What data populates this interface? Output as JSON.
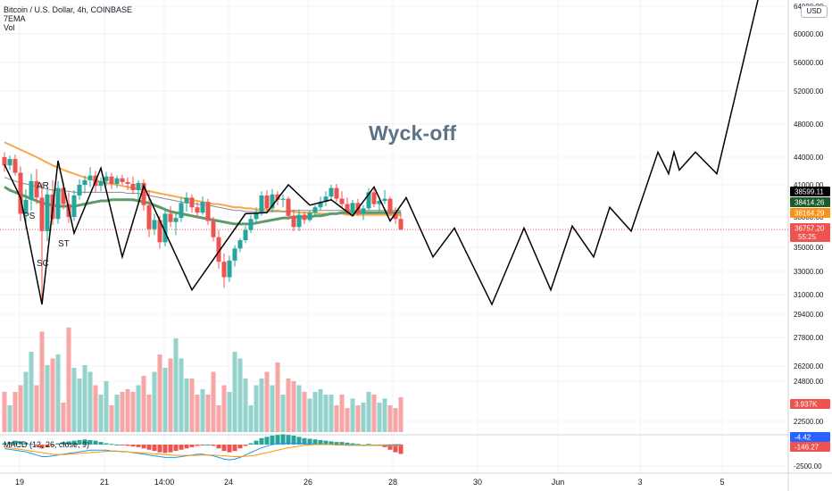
{
  "legend": {
    "symbol": "Bitcoin / U.S. Dollar, 4h, COINBASE",
    "ema": "7EMA",
    "vol": "Vol"
  },
  "currency_badge": "USD",
  "macd_title": "MACD (12, 26, close, 9)",
  "annotation_title": "Wyck-off",
  "wyckoff_labels": [
    "AR",
    "PS",
    "ST",
    "SC"
  ],
  "colors": {
    "up": "#26a69a",
    "down": "#ef5350",
    "vol_up": "#94d3cc",
    "vol_down": "#f5a6a5",
    "ema_fast": "#5e9b68",
    "ema_slow": "#f7a947",
    "ema_mid": "#8a8a8a",
    "path": "#000000",
    "macd": "#2196f3",
    "signal": "#ff9800",
    "badge_black": "#000000",
    "badge_green": "#1e5b2a",
    "badge_orange": "#f7931a",
    "badge_red": "#ef5350",
    "badge_blue": "#2962ff"
  },
  "chart_data": {
    "type": "candlestick",
    "interval": "4h",
    "x_tick_labels": [
      "19",
      "21",
      "14:00",
      "24",
      "26",
      "28",
      "30",
      "Jun",
      "3",
      "5"
    ],
    "y_axis_price": {
      "tick_labels": [
        "64000.00",
        "60000.00",
        "56000.00",
        "52000.00",
        "48000.00",
        "44000.00",
        "41000.00",
        "38000.00",
        "35000.00",
        "33000.00",
        "31000.00",
        "29400.00"
      ],
      "badges": [
        {
          "value": "38599.11",
          "color": "badge_black"
        },
        {
          "value": "38414.26",
          "color": "badge_green"
        },
        {
          "value": "38164.29",
          "color": "badge_orange"
        },
        {
          "value": "36757.20",
          "color": "badge_red",
          "sub": "55:25"
        }
      ]
    },
    "y_axis_volume": {
      "tick_labels": [
        "27800.00",
        "26200.00",
        "24800.00",
        "22500.00"
      ],
      "badge": "3.937K"
    },
    "y_axis_macd": {
      "tick_labels": [
        "-2500.00"
      ],
      "badges": [
        {
          "value": "-4.42",
          "color": "badge_blue"
        },
        {
          "value": "-146.27",
          "color": "badge_red"
        }
      ]
    },
    "candles": [
      {
        "o": 44000,
        "h": 44600,
        "l": 42400,
        "c": 43100
      },
      {
        "o": 43100,
        "h": 44200,
        "l": 42600,
        "c": 43800
      },
      {
        "o": 43800,
        "h": 44300,
        "l": 42000,
        "c": 42300
      },
      {
        "o": 42300,
        "h": 43000,
        "l": 37600,
        "c": 38300
      },
      {
        "o": 38300,
        "h": 40600,
        "l": 36800,
        "c": 39600
      },
      {
        "o": 39600,
        "h": 42200,
        "l": 38600,
        "c": 41400
      },
      {
        "o": 41400,
        "h": 42700,
        "l": 39200,
        "c": 39800
      },
      {
        "o": 39800,
        "h": 41200,
        "l": 30200,
        "c": 36600
      },
      {
        "o": 36600,
        "h": 40800,
        "l": 35600,
        "c": 40100
      },
      {
        "o": 40100,
        "h": 41500,
        "l": 37200,
        "c": 37800
      },
      {
        "o": 37800,
        "h": 41400,
        "l": 37300,
        "c": 40700
      },
      {
        "o": 40700,
        "h": 41300,
        "l": 38700,
        "c": 39200
      },
      {
        "o": 39200,
        "h": 40300,
        "l": 37400,
        "c": 38000
      },
      {
        "o": 38000,
        "h": 40500,
        "l": 37600,
        "c": 40000
      },
      {
        "o": 40000,
        "h": 41600,
        "l": 39600,
        "c": 41000
      },
      {
        "o": 41000,
        "h": 42000,
        "l": 40200,
        "c": 41500
      },
      {
        "o": 41500,
        "h": 42900,
        "l": 40800,
        "c": 42000
      },
      {
        "o": 42000,
        "h": 42500,
        "l": 40300,
        "c": 40900
      },
      {
        "o": 40900,
        "h": 41800,
        "l": 40400,
        "c": 41400
      },
      {
        "o": 41400,
        "h": 42400,
        "l": 40900,
        "c": 41900
      },
      {
        "o": 41900,
        "h": 42300,
        "l": 40600,
        "c": 41100
      },
      {
        "o": 41100,
        "h": 42000,
        "l": 40700,
        "c": 41700
      },
      {
        "o": 41700,
        "h": 42100,
        "l": 41000,
        "c": 41300
      },
      {
        "o": 41300,
        "h": 41800,
        "l": 40500,
        "c": 41100
      },
      {
        "o": 41100,
        "h": 41900,
        "l": 40100,
        "c": 40500
      },
      {
        "o": 40500,
        "h": 41500,
        "l": 39600,
        "c": 41200
      },
      {
        "o": 41200,
        "h": 41600,
        "l": 38600,
        "c": 39100
      },
      {
        "o": 39100,
        "h": 40500,
        "l": 36000,
        "c": 36800
      },
      {
        "o": 36800,
        "h": 38300,
        "l": 36200,
        "c": 37700
      },
      {
        "o": 37700,
        "h": 38100,
        "l": 34900,
        "c": 35500
      },
      {
        "o": 35500,
        "h": 38800,
        "l": 35100,
        "c": 38300
      },
      {
        "o": 38300,
        "h": 39000,
        "l": 37000,
        "c": 37500
      },
      {
        "o": 37500,
        "h": 38400,
        "l": 36200,
        "c": 37900
      },
      {
        "o": 37900,
        "h": 39800,
        "l": 37500,
        "c": 39300
      },
      {
        "o": 39300,
        "h": 40300,
        "l": 38500,
        "c": 39800
      },
      {
        "o": 39800,
        "h": 40100,
        "l": 38400,
        "c": 38900
      },
      {
        "o": 38900,
        "h": 39400,
        "l": 37900,
        "c": 38400
      },
      {
        "o": 38400,
        "h": 39900,
        "l": 38200,
        "c": 39400
      },
      {
        "o": 39400,
        "h": 39700,
        "l": 37200,
        "c": 37600
      },
      {
        "o": 37600,
        "h": 38000,
        "l": 35600,
        "c": 36000
      },
      {
        "o": 36000,
        "h": 36700,
        "l": 33200,
        "c": 33800
      },
      {
        "o": 33800,
        "h": 34500,
        "l": 31600,
        "c": 32500
      },
      {
        "o": 32500,
        "h": 34300,
        "l": 32100,
        "c": 33900
      },
      {
        "o": 33900,
        "h": 35200,
        "l": 33400,
        "c": 34900
      },
      {
        "o": 34900,
        "h": 35900,
        "l": 34600,
        "c": 35700
      },
      {
        "o": 35700,
        "h": 37100,
        "l": 35400,
        "c": 36700
      },
      {
        "o": 36700,
        "h": 38200,
        "l": 36400,
        "c": 37800
      },
      {
        "o": 37800,
        "h": 38900,
        "l": 37300,
        "c": 38400
      },
      {
        "o": 38400,
        "h": 40400,
        "l": 38100,
        "c": 40000
      },
      {
        "o": 40000,
        "h": 40500,
        "l": 38300,
        "c": 38800
      },
      {
        "o": 38800,
        "h": 40600,
        "l": 38400,
        "c": 40100
      },
      {
        "o": 40100,
        "h": 40400,
        "l": 39100,
        "c": 39600
      },
      {
        "o": 39600,
        "h": 40100,
        "l": 38900,
        "c": 39700
      },
      {
        "o": 39700,
        "h": 39900,
        "l": 37700,
        "c": 38100
      },
      {
        "o": 38100,
        "h": 38700,
        "l": 36600,
        "c": 37000
      },
      {
        "o": 37000,
        "h": 38700,
        "l": 36600,
        "c": 38200
      },
      {
        "o": 38200,
        "h": 38500,
        "l": 37300,
        "c": 37700
      },
      {
        "o": 37700,
        "h": 38600,
        "l": 37500,
        "c": 38400
      },
      {
        "o": 38400,
        "h": 39100,
        "l": 38000,
        "c": 38900
      },
      {
        "o": 38900,
        "h": 39900,
        "l": 38600,
        "c": 39400
      },
      {
        "o": 39400,
        "h": 40400,
        "l": 39000,
        "c": 39900
      },
      {
        "o": 39900,
        "h": 41000,
        "l": 39500,
        "c": 40700
      },
      {
        "o": 40700,
        "h": 41100,
        "l": 39400,
        "c": 39700
      },
      {
        "o": 39700,
        "h": 40400,
        "l": 38900,
        "c": 39200
      },
      {
        "o": 39200,
        "h": 39800,
        "l": 38200,
        "c": 38500
      },
      {
        "o": 38500,
        "h": 39600,
        "l": 38200,
        "c": 39300
      },
      {
        "o": 39300,
        "h": 39700,
        "l": 38100,
        "c": 38300
      },
      {
        "o": 38300,
        "h": 39100,
        "l": 37700,
        "c": 38800
      },
      {
        "o": 38800,
        "h": 40700,
        "l": 38600,
        "c": 40300
      },
      {
        "o": 40300,
        "h": 40600,
        "l": 38900,
        "c": 39200
      },
      {
        "o": 39200,
        "h": 39700,
        "l": 38400,
        "c": 39500
      },
      {
        "o": 39500,
        "h": 40500,
        "l": 39200,
        "c": 39700
      },
      {
        "o": 39700,
        "h": 39900,
        "l": 38100,
        "c": 38400
      },
      {
        "o": 38400,
        "h": 38900,
        "l": 37300,
        "c": 37800
      },
      {
        "o": 37800,
        "h": 38400,
        "l": 36700,
        "c": 36757
      }
    ],
    "volume": [
      30,
      20,
      30,
      35,
      45,
      60,
      35,
      75,
      50,
      55,
      58,
      22,
      78,
      48,
      40,
      50,
      45,
      35,
      28,
      38,
      20,
      28,
      30,
      32,
      30,
      35,
      42,
      28,
      45,
      58,
      48,
      55,
      70,
      55,
      40,
      40,
      28,
      32,
      28,
      45,
      20,
      35,
      30,
      60,
      55,
      40,
      20,
      35,
      40,
      45,
      35,
      52,
      28,
      40,
      38,
      35,
      30,
      25,
      30,
      32,
      28,
      28,
      20,
      28,
      18,
      25,
      20,
      22,
      30,
      28,
      22,
      25,
      20,
      18,
      26
    ],
    "ema_fast": [
      40800,
      40500,
      40300,
      40100,
      39900,
      39700,
      39500,
      39300,
      39200,
      39100,
      39000,
      39000,
      39000,
      39000,
      39100,
      39200,
      39300,
      39400,
      39500,
      39500,
      39600,
      39600,
      39600,
      39600,
      39600,
      39500,
      39400,
      39300,
      39100,
      38900,
      38700,
      38500,
      38400,
      38300,
      38200,
      38100,
      38000,
      37900,
      37800,
      37700,
      37600,
      37500,
      37400,
      37300,
      37300,
      37300,
      37300,
      37400,
      37500,
      37600,
      37700,
      37800,
      37900,
      37900,
      38000,
      38000,
      38000,
      38000,
      38100,
      38100,
      38200,
      38300,
      38300,
      38400,
      38400,
      38400,
      38400,
      38400,
      38400,
      38400,
      38400,
      38400,
      38400,
      38400,
      38414
    ],
    "ema_mid": [
      41800,
      41600,
      41400,
      41200,
      41100,
      41000,
      40800,
      40700,
      40600,
      40500,
      40500,
      40400,
      40400,
      40300,
      40300,
      40300,
      40300,
      40300,
      40300,
      40300,
      40300,
      40300,
      40300,
      40200,
      40200,
      40200,
      40100,
      40000,
      39900,
      39800,
      39700,
      39600,
      39500,
      39400,
      39300,
      39300,
      39200,
      39100,
      39100,
      39000,
      38900,
      38800,
      38700,
      38600,
      38600,
      38500,
      38500,
      38500,
      38500,
      38500,
      38500,
      38500,
      38500,
      38600,
      38600,
      38600,
      38600,
      38600,
      38600,
      38600,
      38600,
      38600,
      38600,
      38600,
      38600,
      38600,
      38600,
      38600,
      38600,
      38600,
      38600,
      38600,
      38600,
      38599,
      38599
    ],
    "ema_slow": [
      45800,
      45500,
      45200,
      44900,
      44600,
      44300,
      44000,
      43700,
      43400,
      43100,
      42900,
      42600,
      42400,
      42200,
      42000,
      41800,
      41600,
      41500,
      41300,
      41200,
      41100,
      41000,
      40900,
      40800,
      40700,
      40600,
      40500,
      40400,
      40300,
      40200,
      40100,
      40000,
      39900,
      39800,
      39700,
      39600,
      39500,
      39400,
      39300,
      39200,
      39200,
      39100,
      39000,
      38900,
      38900,
      38800,
      38800,
      38700,
      38700,
      38700,
      38600,
      38600,
      38500,
      38500,
      38500,
      38400,
      38400,
      38400,
      38400,
      38300,
      38300,
      38300,
      38300,
      38300,
      38200,
      38200,
      38200,
      38200,
      38200,
      38200,
      38200,
      38200,
      38200,
      38164,
      38164
    ],
    "projection_path": [
      {
        "bar": 0,
        "price": 43200
      },
      {
        "bar": 3,
        "price": 39800
      },
      {
        "bar": 7,
        "price": 30200
      },
      {
        "bar": 10,
        "price": 43600
      },
      {
        "bar": 13,
        "price": 36400
      },
      {
        "bar": 18,
        "price": 42800
      },
      {
        "bar": 22,
        "price": 34200
      },
      {
        "bar": 26,
        "price": 40900
      },
      {
        "bar": 35,
        "price": 31400
      },
      {
        "bar": 45,
        "price": 38300
      },
      {
        "bar": 49,
        "price": 38400
      },
      {
        "bar": 53,
        "price": 41000
      },
      {
        "bar": 57,
        "price": 39100
      },
      {
        "bar": 61,
        "price": 39600
      },
      {
        "bar": 65,
        "price": 38100
      },
      {
        "bar": 69,
        "price": 40800
      },
      {
        "bar": 72,
        "price": 37600
      },
      {
        "bar": 75,
        "price": 39800
      },
      {
        "bar": 80,
        "price": 34200
      },
      {
        "bar": 84,
        "price": 36900
      },
      {
        "bar": 91,
        "price": 30200
      },
      {
        "bar": 97,
        "price": 36900
      },
      {
        "bar": 102,
        "price": 31400
      },
      {
        "bar": 106,
        "price": 37100
      },
      {
        "bar": 110,
        "price": 34200
      },
      {
        "bar": 113,
        "price": 38900
      },
      {
        "bar": 117,
        "price": 36600
      },
      {
        "bar": 122,
        "price": 44600
      },
      {
        "bar": 124,
        "price": 42200
      },
      {
        "bar": 125,
        "price": 44600
      },
      {
        "bar": 126,
        "price": 42600
      },
      {
        "bar": 129,
        "price": 44600
      },
      {
        "bar": 133,
        "price": 42200
      },
      {
        "bar": 141,
        "price": 66000
      }
    ],
    "macd_histogram": [
      20,
      40,
      60,
      50,
      30,
      10,
      -20,
      -60,
      -40,
      -10,
      20,
      40,
      50,
      60,
      70,
      80,
      70,
      60,
      40,
      20,
      10,
      0,
      -10,
      -20,
      -30,
      -40,
      -60,
      -80,
      -100,
      -120,
      -130,
      -120,
      -100,
      -80,
      -60,
      -40,
      -20,
      -10,
      0,
      -20,
      -60,
      -100,
      -120,
      -100,
      -60,
      -20,
      20,
      60,
      100,
      120,
      140,
      150,
      160,
      150,
      140,
      120,
      100,
      90,
      80,
      70,
      60,
      50,
      40,
      40,
      30,
      20,
      10,
      0,
      10,
      0,
      -20,
      -40,
      -80,
      -120,
      -146
    ],
    "macd_line": [
      -500,
      -600,
      -700,
      -800,
      -900,
      -1100,
      -1300,
      -1500,
      -1500,
      -1400,
      -1300,
      -1200,
      -1100,
      -1000,
      -900,
      -800,
      -700,
      -700,
      -700,
      -700,
      -800,
      -800,
      -900,
      -900,
      -1000,
      -1100,
      -1200,
      -1300,
      -1400,
      -1500,
      -1600,
      -1600,
      -1600,
      -1500,
      -1400,
      -1300,
      -1200,
      -1200,
      -1300,
      -1400,
      -1600,
      -1800,
      -1900,
      -1800,
      -1600,
      -1300,
      -1000,
      -700,
      -400,
      -200,
      0,
      100,
      150,
      200,
      200,
      150,
      100,
      100,
      50,
      50,
      0,
      0,
      -50,
      -50,
      -100,
      -100,
      -100,
      -100,
      -100,
      -100,
      -100,
      -50,
      -30,
      -10,
      -4
    ],
    "signal_line": [
      -300,
      -400,
      -500,
      -600,
      -700,
      -800,
      -900,
      -1000,
      -1100,
      -1200,
      -1250,
      -1250,
      -1200,
      -1150,
      -1100,
      -1050,
      -1000,
      -950,
      -900,
      -850,
      -850,
      -850,
      -850,
      -900,
      -950,
      -1000,
      -1050,
      -1100,
      -1150,
      -1200,
      -1250,
      -1300,
      -1350,
      -1350,
      -1350,
      -1350,
      -1350,
      -1300,
      -1300,
      -1300,
      -1350,
      -1400,
      -1450,
      -1500,
      -1500,
      -1450,
      -1400,
      -1300,
      -1150,
      -1000,
      -850,
      -700,
      -550,
      -400,
      -300,
      -200,
      -100,
      -50,
      0,
      0,
      0,
      0,
      -20,
      -30,
      -40,
      -50,
      -60,
      -70,
      -80,
      -90,
      -100,
      -110,
      -120,
      -130,
      -142
    ]
  }
}
